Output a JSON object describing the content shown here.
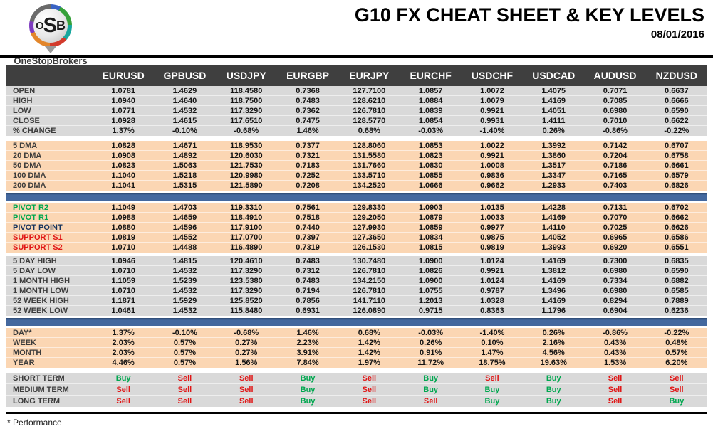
{
  "header": {
    "logo": {
      "letters": [
        "O",
        "S",
        "B"
      ],
      "subtext": "OneStopBrokers"
    },
    "title": "G10 FX CHEAT SHEET & KEY LEVELS",
    "date": "08/01/2016"
  },
  "colors": {
    "header_dark": "#3f3f3f",
    "section_gray": "#d9d9d9",
    "section_peach": "#fbd6b3",
    "divider_blue": "#44689e",
    "buy_green": "#00a74f",
    "sell_red": "#e01616",
    "pivot_navy": "#17355e"
  },
  "table": {
    "columns": [
      "EURUSD",
      "GPBUSD",
      "USDJPY",
      "EURGBP",
      "EURJPY",
      "EURCHF",
      "USDCHF",
      "USDCAD",
      "AUDUSD",
      "NZDUSD"
    ],
    "sections": [
      {
        "id": "ohlc",
        "bg": "gray",
        "divider_before": "none",
        "rows": [
          {
            "label": "OPEN",
            "values": [
              "1.0781",
              "1.4629",
              "118.4580",
              "0.7368",
              "127.7100",
              "1.0857",
              "1.0072",
              "1.4075",
              "0.7071",
              "0.6637"
            ]
          },
          {
            "label": "HIGH",
            "values": [
              "1.0940",
              "1.4640",
              "118.7500",
              "0.7483",
              "128.6210",
              "1.0884",
              "1.0079",
              "1.4169",
              "0.7085",
              "0.6666"
            ]
          },
          {
            "label": "LOW",
            "values": [
              "1.0771",
              "1.4532",
              "117.3290",
              "0.7362",
              "126.7810",
              "1.0839",
              "0.9921",
              "1.4051",
              "0.6980",
              "0.6590"
            ]
          },
          {
            "label": "CLOSE",
            "values": [
              "1.0928",
              "1.4615",
              "117.6510",
              "0.7475",
              "128.5770",
              "1.0854",
              "0.9931",
              "1.4111",
              "0.7010",
              "0.6622"
            ]
          },
          {
            "label": "% CHANGE",
            "values": [
              "1.37%",
              "-0.10%",
              "-0.68%",
              "1.46%",
              "0.68%",
              "-0.03%",
              "-1.40%",
              "0.26%",
              "-0.86%",
              "-0.22%"
            ]
          }
        ]
      },
      {
        "id": "dma",
        "bg": "peach",
        "divider_before": "gap",
        "rows": [
          {
            "label": "5 DMA",
            "values": [
              "1.0828",
              "1.4671",
              "118.9530",
              "0.7377",
              "128.8060",
              "1.0853",
              "1.0022",
              "1.3992",
              "0.7142",
              "0.6707"
            ]
          },
          {
            "label": "20 DMA",
            "values": [
              "1.0908",
              "1.4892",
              "120.6030",
              "0.7321",
              "131.5580",
              "1.0823",
              "0.9921",
              "1.3860",
              "0.7204",
              "0.6758"
            ]
          },
          {
            "label": "50 DMA",
            "values": [
              "1.0823",
              "1.5063",
              "121.7530",
              "0.7183",
              "131.7660",
              "1.0830",
              "1.0008",
              "1.3517",
              "0.7186",
              "0.6661"
            ]
          },
          {
            "label": "100 DMA",
            "values": [
              "1.1040",
              "1.5218",
              "120.9980",
              "0.7252",
              "133.5710",
              "1.0855",
              "0.9836",
              "1.3347",
              "0.7165",
              "0.6579"
            ]
          },
          {
            "label": "200 DMA",
            "values": [
              "1.1041",
              "1.5315",
              "121.5890",
              "0.7208",
              "134.2520",
              "1.0666",
              "0.9662",
              "1.2933",
              "0.7403",
              "0.6826"
            ]
          }
        ]
      },
      {
        "id": "pivots",
        "bg": "peach",
        "divider_before": "blue",
        "rows": [
          {
            "label": "PIVOT R2",
            "label_color": "green",
            "values": [
              "1.1049",
              "1.4703",
              "119.3310",
              "0.7561",
              "129.8330",
              "1.0903",
              "1.0135",
              "1.4228",
              "0.7131",
              "0.6702"
            ]
          },
          {
            "label": "PIVOT R1",
            "label_color": "green",
            "values": [
              "1.0988",
              "1.4659",
              "118.4910",
              "0.7518",
              "129.2050",
              "1.0879",
              "1.0033",
              "1.4169",
              "0.7070",
              "0.6662"
            ]
          },
          {
            "label": "PIVOT POINT",
            "label_color": "navy",
            "values": [
              "1.0880",
              "1.4596",
              "117.9100",
              "0.7440",
              "127.9930",
              "1.0859",
              "0.9977",
              "1.4110",
              "0.7025",
              "0.6626"
            ]
          },
          {
            "label": "SUPPORT S1",
            "label_color": "red",
            "values": [
              "1.0819",
              "1.4552",
              "117.0700",
              "0.7397",
              "127.3650",
              "1.0834",
              "0.9875",
              "1.4052",
              "0.6965",
              "0.6586"
            ]
          },
          {
            "label": "SUPPORT S2",
            "label_color": "red",
            "values": [
              "1.0710",
              "1.4488",
              "116.4890",
              "0.7319",
              "126.1530",
              "1.0815",
              "0.9819",
              "1.3993",
              "0.6920",
              "0.6551"
            ]
          }
        ]
      },
      {
        "id": "ranges",
        "bg": "gray",
        "divider_before": "gap-sm",
        "rows": [
          {
            "label": "5 DAY HIGH",
            "values": [
              "1.0946",
              "1.4815",
              "120.4610",
              "0.7483",
              "130.7480",
              "1.0900",
              "1.0124",
              "1.4169",
              "0.7300",
              "0.6835"
            ]
          },
          {
            "label": "5 DAY LOW",
            "values": [
              "1.0710",
              "1.4532",
              "117.3290",
              "0.7312",
              "126.7810",
              "1.0826",
              "0.9921",
              "1.3812",
              "0.6980",
              "0.6590"
            ]
          },
          {
            "label": "1 MONTH HIGH",
            "values": [
              "1.1059",
              "1.5239",
              "123.5380",
              "0.7483",
              "134.2150",
              "1.0900",
              "1.0124",
              "1.4169",
              "0.7334",
              "0.6882"
            ]
          },
          {
            "label": "1 MONTH LOW",
            "values": [
              "1.0710",
              "1.4532",
              "117.3290",
              "0.7194",
              "126.7810",
              "1.0755",
              "0.9787",
              "1.3496",
              "0.6980",
              "0.6585"
            ]
          },
          {
            "label": "52 WEEK HIGH",
            "values": [
              "1.1871",
              "1.5929",
              "125.8520",
              "0.7856",
              "141.7110",
              "1.2013",
              "1.0328",
              "1.4169",
              "0.8294",
              "0.7889"
            ]
          },
          {
            "label": "52 WEEK LOW",
            "values": [
              "1.0461",
              "1.4532",
              "115.8480",
              "0.6931",
              "126.0890",
              "0.9715",
              "0.8363",
              "1.1796",
              "0.6904",
              "0.6236"
            ]
          }
        ]
      },
      {
        "id": "performance",
        "bg": "peach",
        "divider_before": "blue",
        "rows": [
          {
            "label": "DAY*",
            "values": [
              "1.37%",
              "-0.10%",
              "-0.68%",
              "1.46%",
              "0.68%",
              "-0.03%",
              "-1.40%",
              "0.26%",
              "-0.86%",
              "-0.22%"
            ]
          },
          {
            "label": "WEEK",
            "values": [
              "2.03%",
              "0.57%",
              "0.27%",
              "2.23%",
              "1.42%",
              "0.26%",
              "0.10%",
              "2.16%",
              "0.43%",
              "0.48%"
            ]
          },
          {
            "label": "MONTH",
            "values": [
              "2.03%",
              "0.57%",
              "0.27%",
              "3.91%",
              "1.42%",
              "0.91%",
              "1.47%",
              "4.56%",
              "0.43%",
              "0.57%"
            ]
          },
          {
            "label": "YEAR",
            "values": [
              "4.46%",
              "0.57%",
              "1.56%",
              "7.84%",
              "1.97%",
              "11.72%",
              "18.75%",
              "19.63%",
              "1.53%",
              "6.20%"
            ]
          }
        ]
      },
      {
        "id": "signals",
        "bg": "gray",
        "divider_before": "gap",
        "rows": [
          {
            "label": "SHORT TERM",
            "values": [
              "Buy",
              "Sell",
              "Sell",
              "Buy",
              "Sell",
              "Buy",
              "Sell",
              "Buy",
              "Sell",
              "Sell"
            ]
          },
          {
            "label": "MEDIUM TERM",
            "values": [
              "Sell",
              "Sell",
              "Sell",
              "Buy",
              "Sell",
              "Buy",
              "Buy",
              "Buy",
              "Sell",
              "Sell"
            ]
          },
          {
            "label": "LONG TERM",
            "values": [
              "Sell",
              "Sell",
              "Sell",
              "Buy",
              "Sell",
              "Sell",
              "Buy",
              "Buy",
              "Sell",
              "Buy"
            ]
          }
        ]
      }
    ]
  },
  "footer": {
    "note": "* Performance"
  }
}
